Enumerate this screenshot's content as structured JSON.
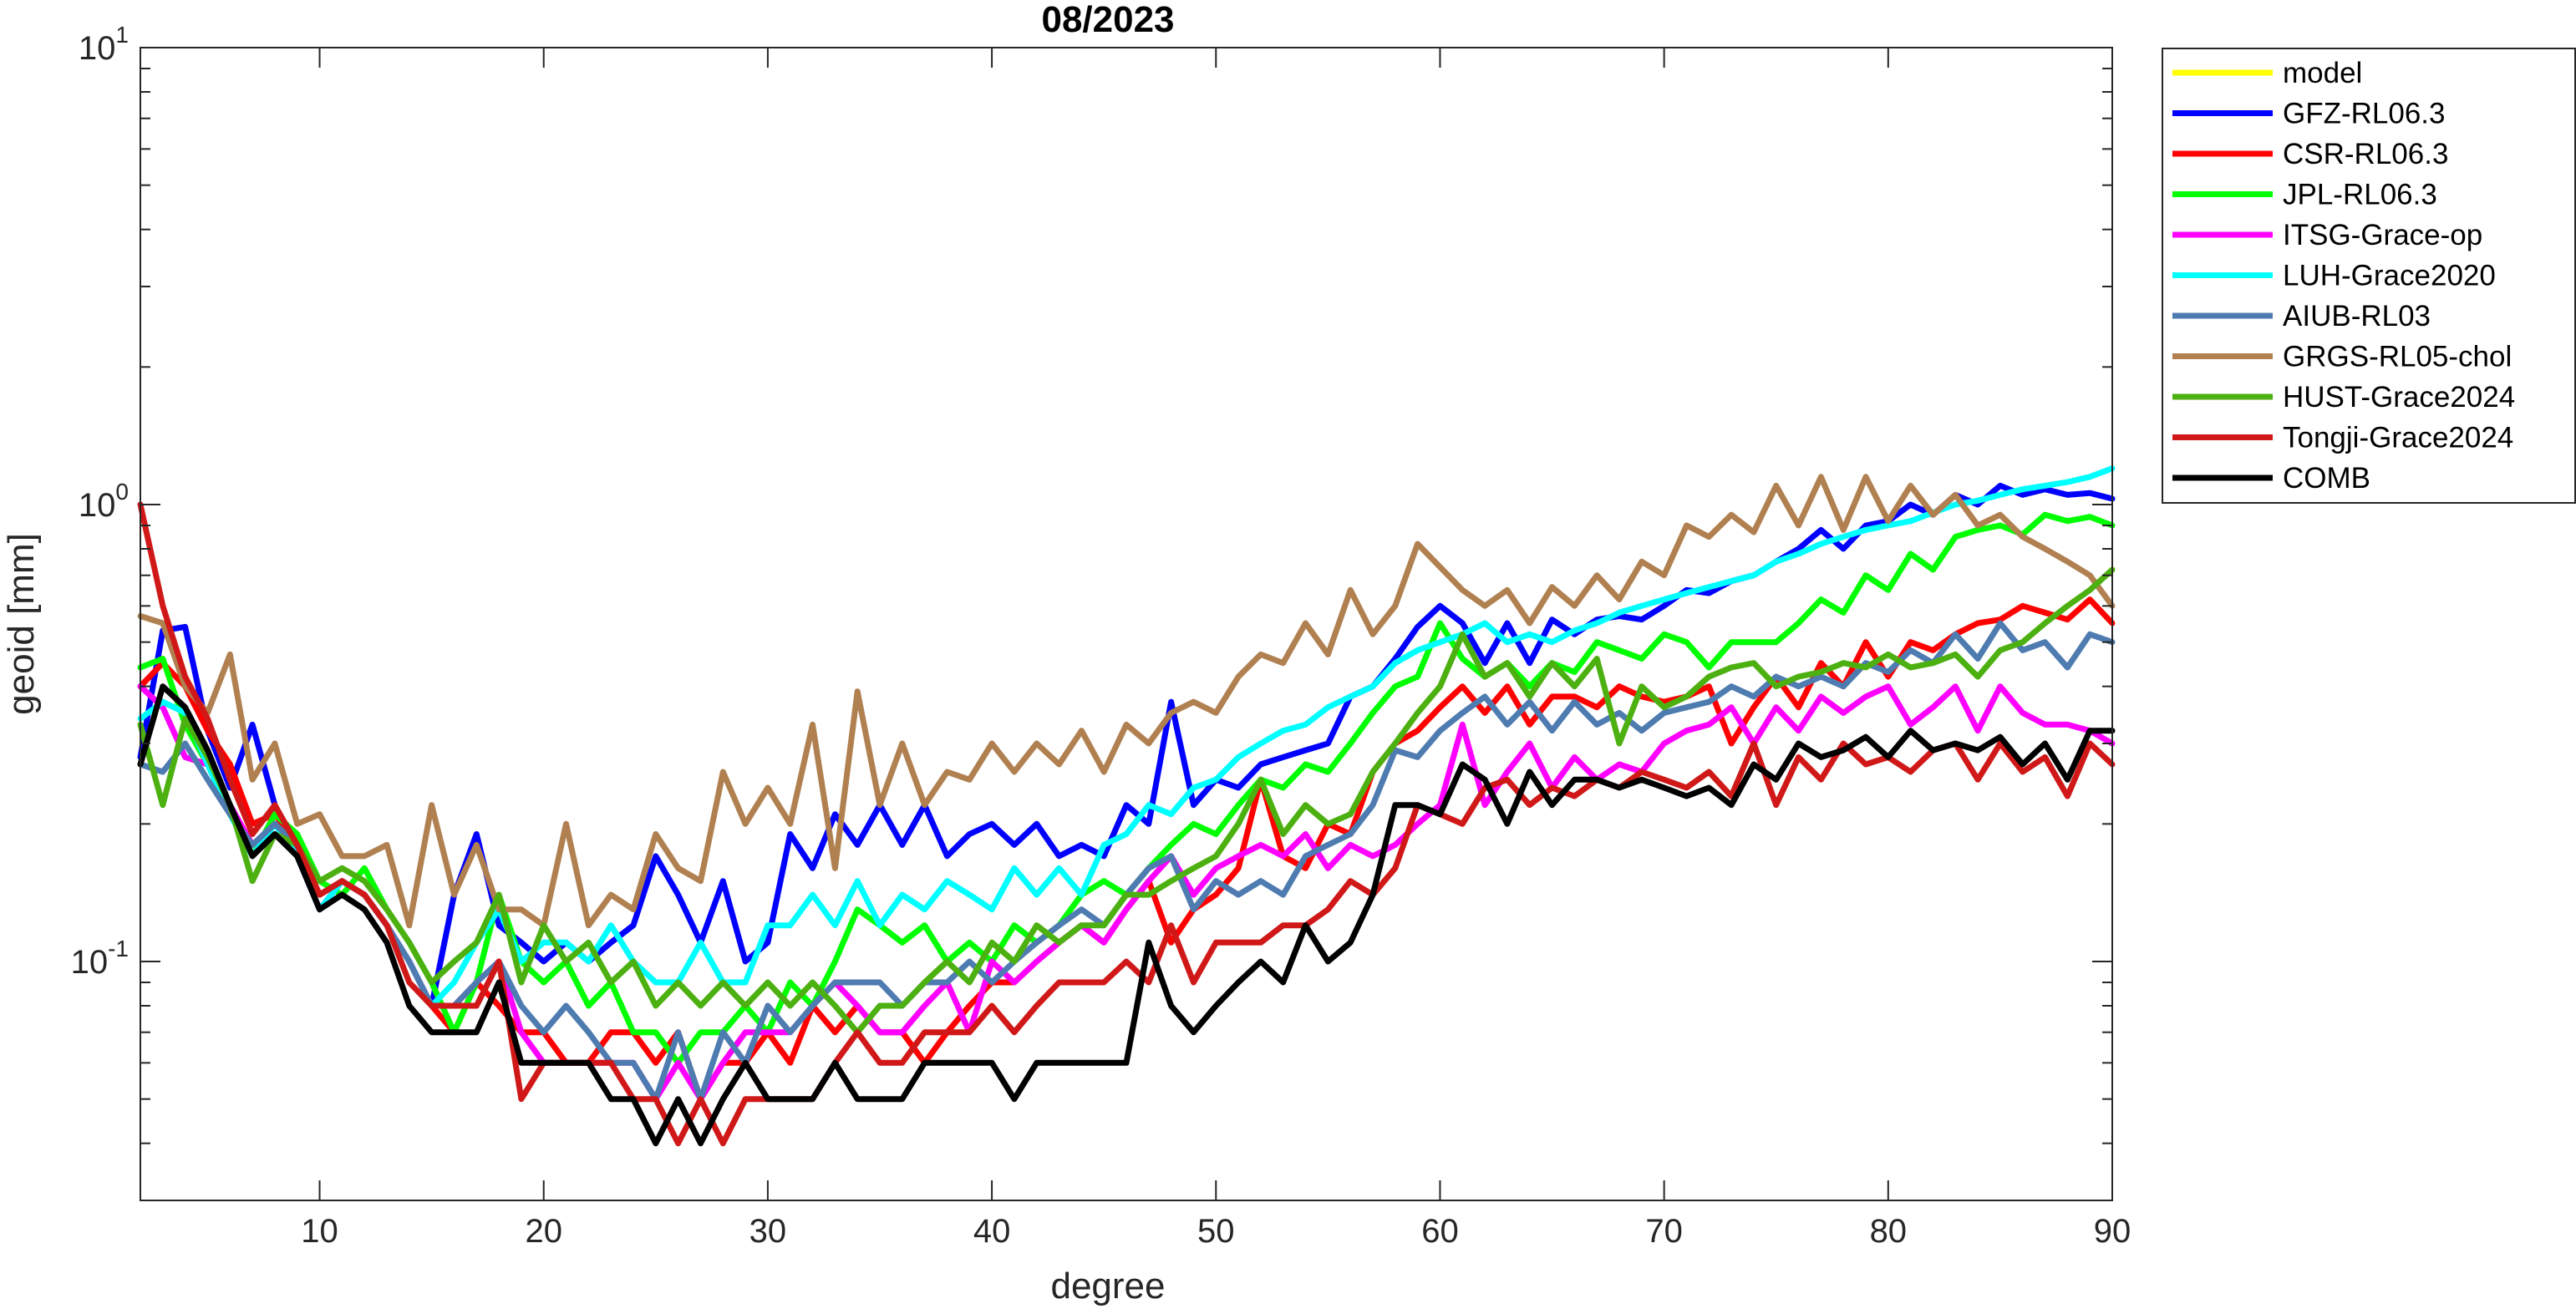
{
  "chart_data": {
    "type": "line",
    "title": "08/2023",
    "xlabel": "degree",
    "ylabel": "geoid [mm]",
    "yscale": "log",
    "xlim": [
      2,
      90
    ],
    "ylim": [
      0.03,
      10
    ],
    "xticks": [
      10,
      20,
      30,
      40,
      50,
      60,
      70,
      80,
      90
    ],
    "yticks": [
      {
        "value": 0.1,
        "base": "10",
        "exp": "-1"
      },
      {
        "value": 1,
        "base": "10",
        "exp": "0"
      },
      {
        "value": 10,
        "base": "10",
        "exp": "1"
      }
    ],
    "grid": false,
    "legend_position": "outside-top-right",
    "x_start": 2,
    "x_step": 1,
    "series": [
      {
        "name": "model",
        "color": "#FFFF00",
        "values": []
      },
      {
        "name": "GFZ-RL06.3",
        "color": "#0000FF",
        "values": [
          0.28,
          0.53,
          0.54,
          0.32,
          0.24,
          0.33,
          0.22,
          0.17,
          0.13,
          0.15,
          0.14,
          0.12,
          0.1,
          0.08,
          0.14,
          0.19,
          0.12,
          0.11,
          0.1,
          0.11,
          0.1,
          0.11,
          0.12,
          0.17,
          0.14,
          0.11,
          0.15,
          0.1,
          0.11,
          0.19,
          0.16,
          0.21,
          0.18,
          0.22,
          0.18,
          0.22,
          0.17,
          0.19,
          0.2,
          0.18,
          0.2,
          0.17,
          0.18,
          0.17,
          0.22,
          0.2,
          0.37,
          0.22,
          0.25,
          0.24,
          0.27,
          0.28,
          0.29,
          0.3,
          0.38,
          0.4,
          0.46,
          0.54,
          0.6,
          0.55,
          0.45,
          0.55,
          0.45,
          0.56,
          0.52,
          0.56,
          0.57,
          0.56,
          0.6,
          0.65,
          0.64,
          0.68,
          0.7,
          0.75,
          0.8,
          0.88,
          0.8,
          0.9,
          0.92,
          1.0,
          0.95,
          1.05,
          1.0,
          1.1,
          1.05,
          1.08,
          1.05,
          1.06,
          1.03
        ]
      },
      {
        "name": "CSR-RL06.3",
        "color": "#FF0000",
        "values": [
          0.4,
          0.45,
          0.4,
          0.32,
          0.27,
          0.2,
          0.21,
          0.18,
          0.14,
          0.15,
          0.14,
          0.12,
          0.1,
          0.08,
          0.07,
          0.09,
          0.08,
          0.07,
          0.07,
          0.06,
          0.06,
          0.07,
          0.07,
          0.06,
          0.07,
          0.05,
          0.06,
          0.06,
          0.07,
          0.06,
          0.08,
          0.07,
          0.08,
          0.07,
          0.07,
          0.06,
          0.07,
          0.08,
          0.09,
          0.09,
          0.1,
          0.11,
          0.12,
          0.11,
          0.13,
          0.15,
          0.11,
          0.13,
          0.14,
          0.16,
          0.25,
          0.17,
          0.16,
          0.2,
          0.19,
          0.26,
          0.3,
          0.32,
          0.36,
          0.4,
          0.35,
          0.4,
          0.33,
          0.38,
          0.38,
          0.36,
          0.4,
          0.38,
          0.37,
          0.38,
          0.4,
          0.3,
          0.36,
          0.42,
          0.36,
          0.45,
          0.4,
          0.5,
          0.42,
          0.5,
          0.48,
          0.52,
          0.55,
          0.56,
          0.6,
          0.58,
          0.56,
          0.62,
          0.55
        ]
      },
      {
        "name": "JPL-RL06.3",
        "color": "#00FF00",
        "values": [
          0.44,
          0.46,
          0.33,
          0.27,
          0.22,
          0.17,
          0.21,
          0.19,
          0.15,
          0.14,
          0.16,
          0.13,
          0.11,
          0.09,
          0.07,
          0.09,
          0.14,
          0.1,
          0.09,
          0.1,
          0.08,
          0.09,
          0.07,
          0.07,
          0.06,
          0.07,
          0.07,
          0.08,
          0.07,
          0.09,
          0.08,
          0.1,
          0.13,
          0.12,
          0.11,
          0.12,
          0.1,
          0.11,
          0.1,
          0.12,
          0.11,
          0.12,
          0.14,
          0.15,
          0.14,
          0.16,
          0.18,
          0.2,
          0.19,
          0.22,
          0.25,
          0.24,
          0.27,
          0.26,
          0.3,
          0.35,
          0.4,
          0.42,
          0.55,
          0.46,
          0.42,
          0.45,
          0.4,
          0.45,
          0.43,
          0.5,
          0.48,
          0.46,
          0.52,
          0.5,
          0.44,
          0.5,
          0.5,
          0.5,
          0.55,
          0.62,
          0.58,
          0.7,
          0.65,
          0.78,
          0.72,
          0.85,
          0.88,
          0.9,
          0.86,
          0.95,
          0.92,
          0.94,
          0.9
        ]
      },
      {
        "name": "ITSG-Grace-op",
        "color": "#FF00FF",
        "values": [
          0.4,
          0.36,
          0.28,
          0.27,
          0.22,
          0.18,
          0.2,
          0.17,
          0.13,
          0.15,
          0.14,
          0.12,
          0.1,
          0.08,
          0.08,
          0.09,
          0.1,
          0.07,
          0.06,
          0.06,
          0.06,
          0.06,
          0.06,
          0.05,
          0.06,
          0.05,
          0.06,
          0.07,
          0.07,
          0.07,
          0.08,
          0.09,
          0.08,
          0.07,
          0.07,
          0.08,
          0.09,
          0.07,
          0.1,
          0.09,
          0.1,
          0.11,
          0.12,
          0.11,
          0.13,
          0.15,
          0.17,
          0.14,
          0.16,
          0.17,
          0.18,
          0.17,
          0.19,
          0.16,
          0.18,
          0.17,
          0.18,
          0.2,
          0.22,
          0.33,
          0.22,
          0.26,
          0.3,
          0.24,
          0.28,
          0.25,
          0.27,
          0.26,
          0.3,
          0.32,
          0.33,
          0.36,
          0.3,
          0.36,
          0.32,
          0.38,
          0.35,
          0.38,
          0.4,
          0.33,
          0.36,
          0.4,
          0.32,
          0.4,
          0.35,
          0.33,
          0.33,
          0.32,
          0.3
        ]
      },
      {
        "name": "LUH-Grace2020",
        "color": "#00FFFF",
        "values": [
          0.34,
          0.37,
          0.35,
          0.27,
          0.21,
          0.17,
          0.2,
          0.17,
          0.13,
          0.15,
          0.14,
          0.12,
          0.1,
          0.08,
          0.09,
          0.11,
          0.13,
          0.1,
          0.11,
          0.11,
          0.1,
          0.12,
          0.1,
          0.09,
          0.09,
          0.11,
          0.09,
          0.09,
          0.12,
          0.12,
          0.14,
          0.12,
          0.15,
          0.12,
          0.14,
          0.13,
          0.15,
          0.14,
          0.13,
          0.16,
          0.14,
          0.16,
          0.14,
          0.18,
          0.19,
          0.22,
          0.21,
          0.24,
          0.25,
          0.28,
          0.3,
          0.32,
          0.33,
          0.36,
          0.38,
          0.4,
          0.45,
          0.48,
          0.5,
          0.52,
          0.55,
          0.5,
          0.52,
          0.5,
          0.53,
          0.55,
          0.58,
          0.6,
          0.62,
          0.64,
          0.66,
          0.68,
          0.7,
          0.75,
          0.78,
          0.82,
          0.85,
          0.88,
          0.9,
          0.92,
          0.96,
          1.0,
          1.02,
          1.05,
          1.08,
          1.1,
          1.12,
          1.15,
          1.2
        ]
      },
      {
        "name": "AIUB-RL03",
        "color": "#4E7BB0",
        "values": [
          0.27,
          0.26,
          0.3,
          0.25,
          0.21,
          0.18,
          0.2,
          0.18,
          0.14,
          0.15,
          0.14,
          0.12,
          0.1,
          0.08,
          0.08,
          0.09,
          0.1,
          0.08,
          0.07,
          0.08,
          0.07,
          0.06,
          0.06,
          0.05,
          0.07,
          0.05,
          0.07,
          0.06,
          0.08,
          0.07,
          0.08,
          0.09,
          0.09,
          0.09,
          0.08,
          0.09,
          0.09,
          0.1,
          0.09,
          0.1,
          0.11,
          0.12,
          0.13,
          0.12,
          0.14,
          0.16,
          0.17,
          0.13,
          0.15,
          0.14,
          0.15,
          0.14,
          0.17,
          0.18,
          0.19,
          0.22,
          0.29,
          0.28,
          0.32,
          0.35,
          0.38,
          0.33,
          0.37,
          0.32,
          0.37,
          0.33,
          0.35,
          0.32,
          0.35,
          0.36,
          0.37,
          0.4,
          0.38,
          0.42,
          0.4,
          0.42,
          0.4,
          0.45,
          0.43,
          0.48,
          0.45,
          0.52,
          0.46,
          0.55,
          0.48,
          0.5,
          0.44,
          0.52,
          0.5
        ]
      },
      {
        "name": "GRGS-RL05-chol",
        "color": "#B08050",
        "values": [
          0.57,
          0.55,
          0.4,
          0.35,
          0.47,
          0.25,
          0.3,
          0.2,
          0.21,
          0.17,
          0.17,
          0.18,
          0.12,
          0.22,
          0.14,
          0.18,
          0.13,
          0.13,
          0.12,
          0.2,
          0.12,
          0.14,
          0.13,
          0.19,
          0.16,
          0.15,
          0.26,
          0.2,
          0.24,
          0.2,
          0.33,
          0.16,
          0.39,
          0.22,
          0.3,
          0.22,
          0.26,
          0.25,
          0.3,
          0.26,
          0.3,
          0.27,
          0.32,
          0.26,
          0.33,
          0.3,
          0.35,
          0.37,
          0.35,
          0.42,
          0.47,
          0.45,
          0.55,
          0.47,
          0.65,
          0.52,
          0.6,
          0.82,
          0.73,
          0.65,
          0.6,
          0.65,
          0.55,
          0.66,
          0.6,
          0.7,
          0.62,
          0.75,
          0.7,
          0.9,
          0.85,
          0.95,
          0.87,
          1.1,
          0.9,
          1.15,
          0.88,
          1.15,
          0.92,
          1.1,
          0.95,
          1.05,
          0.9,
          0.95,
          0.85,
          0.8,
          0.75,
          0.7,
          0.6
        ]
      },
      {
        "name": "HUST-Grace2024",
        "color": "#4CB010",
        "values": [
          0.33,
          0.22,
          0.34,
          0.28,
          0.22,
          0.15,
          0.19,
          0.18,
          0.15,
          0.16,
          0.15,
          0.13,
          0.11,
          0.09,
          0.1,
          0.11,
          0.14,
          0.09,
          0.12,
          0.1,
          0.11,
          0.09,
          0.1,
          0.08,
          0.09,
          0.08,
          0.09,
          0.08,
          0.09,
          0.08,
          0.09,
          0.08,
          0.07,
          0.08,
          0.08,
          0.09,
          0.1,
          0.09,
          0.11,
          0.1,
          0.12,
          0.11,
          0.12,
          0.12,
          0.14,
          0.14,
          0.15,
          0.16,
          0.17,
          0.2,
          0.25,
          0.19,
          0.22,
          0.2,
          0.21,
          0.26,
          0.3,
          0.35,
          0.4,
          0.52,
          0.42,
          0.45,
          0.38,
          0.45,
          0.4,
          0.46,
          0.3,
          0.4,
          0.36,
          0.38,
          0.42,
          0.44,
          0.45,
          0.4,
          0.42,
          0.43,
          0.45,
          0.44,
          0.47,
          0.44,
          0.45,
          0.47,
          0.42,
          0.48,
          0.5,
          0.55,
          0.6,
          0.65,
          0.72
        ]
      },
      {
        "name": "Tongji-Grace2024",
        "color": "#D01818",
        "values": [
          1.0,
          0.6,
          0.42,
          0.34,
          0.25,
          0.19,
          0.22,
          0.18,
          0.14,
          0.15,
          0.14,
          0.12,
          0.09,
          0.08,
          0.08,
          0.08,
          0.1,
          0.05,
          0.06,
          0.06,
          0.06,
          0.06,
          0.05,
          0.05,
          0.04,
          0.05,
          0.04,
          0.05,
          0.05,
          0.05,
          0.05,
          0.06,
          0.07,
          0.06,
          0.06,
          0.07,
          0.07,
          0.07,
          0.08,
          0.07,
          0.08,
          0.09,
          0.09,
          0.09,
          0.1,
          0.09,
          0.12,
          0.09,
          0.11,
          0.11,
          0.11,
          0.12,
          0.12,
          0.13,
          0.15,
          0.14,
          0.16,
          0.22,
          0.21,
          0.2,
          0.24,
          0.25,
          0.22,
          0.24,
          0.23,
          0.25,
          0.24,
          0.26,
          0.25,
          0.24,
          0.26,
          0.23,
          0.3,
          0.22,
          0.28,
          0.25,
          0.3,
          0.27,
          0.28,
          0.26,
          0.29,
          0.3,
          0.25,
          0.3,
          0.26,
          0.28,
          0.23,
          0.3,
          0.27
        ]
      },
      {
        "name": "COMB",
        "color": "#000000",
        "values": [
          0.27,
          0.4,
          0.36,
          0.29,
          0.22,
          0.17,
          0.19,
          0.17,
          0.13,
          0.14,
          0.13,
          0.11,
          0.08,
          0.07,
          0.07,
          0.07,
          0.09,
          0.06,
          0.06,
          0.06,
          0.06,
          0.05,
          0.05,
          0.04,
          0.05,
          0.04,
          0.05,
          0.06,
          0.05,
          0.05,
          0.05,
          0.06,
          0.05,
          0.05,
          0.05,
          0.06,
          0.06,
          0.06,
          0.06,
          0.05,
          0.06,
          0.06,
          0.06,
          0.06,
          0.06,
          0.11,
          0.08,
          0.07,
          0.08,
          0.09,
          0.1,
          0.09,
          0.12,
          0.1,
          0.11,
          0.14,
          0.22,
          0.22,
          0.21,
          0.27,
          0.25,
          0.2,
          0.26,
          0.22,
          0.25,
          0.25,
          0.24,
          0.25,
          0.24,
          0.23,
          0.24,
          0.22,
          0.27,
          0.25,
          0.3,
          0.28,
          0.29,
          0.31,
          0.28,
          0.32,
          0.29,
          0.3,
          0.29,
          0.31,
          0.27,
          0.3,
          0.25,
          0.32,
          0.32
        ]
      }
    ]
  }
}
